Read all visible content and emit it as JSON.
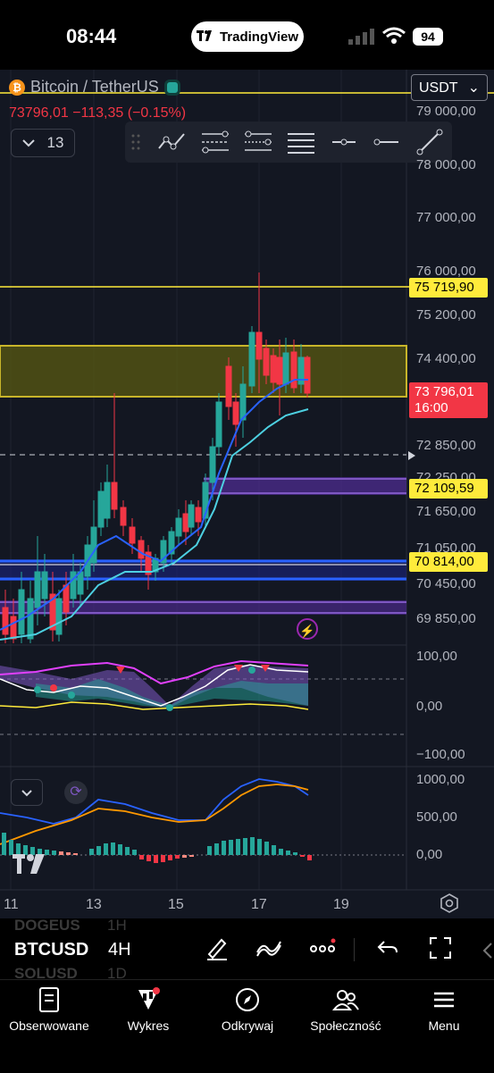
{
  "status_bar": {
    "time": "08:44",
    "app_pill": "TradingView",
    "battery": "94"
  },
  "header": {
    "symbol_name": "Bitcoin / TetherUS",
    "currency": "USDT",
    "last_price": "73796,01",
    "change": "−113,35",
    "change_pct": "(−0.15%)",
    "indicators_count": "13"
  },
  "price_axis": [
    "79 000,00",
    "78 000,00",
    "77 000,00",
    "76 000,00",
    "75 200,00",
    "74 400,00",
    "72 850,00",
    "72 250,00",
    "71 650,00",
    "71 050,00",
    "70 450,00",
    "69 850,00"
  ],
  "price_tags": {
    "level_top": "75 719,90",
    "current": "73 796,01",
    "countdown": "16:00",
    "level_mid": "72 109,59",
    "level_low": "70 814,00"
  },
  "oscillator_axis": [
    "100,00",
    "0,00",
    "−100,00"
  ],
  "macd_axis": [
    "1000,00",
    "500,00",
    "0,00"
  ],
  "time_axis": [
    "11",
    "13",
    "15",
    "17",
    "19"
  ],
  "bottom_toolbar": {
    "symbol": "BTCUSD",
    "interval": "4H",
    "ghost_symbol_above": "DOGEUS",
    "ghost_interval_above": "1H",
    "ghost_symbol_below": "SOLUSD",
    "ghost_interval_below": "1D"
  },
  "nav": [
    {
      "label": "Obserwowane",
      "icon": "watchlist-icon"
    },
    {
      "label": "Wykres",
      "icon": "chart-icon"
    },
    {
      "label": "Odkrywaj",
      "icon": "compass-icon"
    },
    {
      "label": "Społeczność",
      "icon": "community-icon"
    },
    {
      "label": "Menu",
      "icon": "menu-icon"
    }
  ],
  "colors": {
    "up": "#26a69a",
    "down": "#f23645",
    "level": "#ffeb3b",
    "zone": "#5c5c18",
    "purple_zone": "#4a2a8a",
    "blue_line": "#2962ff"
  }
}
